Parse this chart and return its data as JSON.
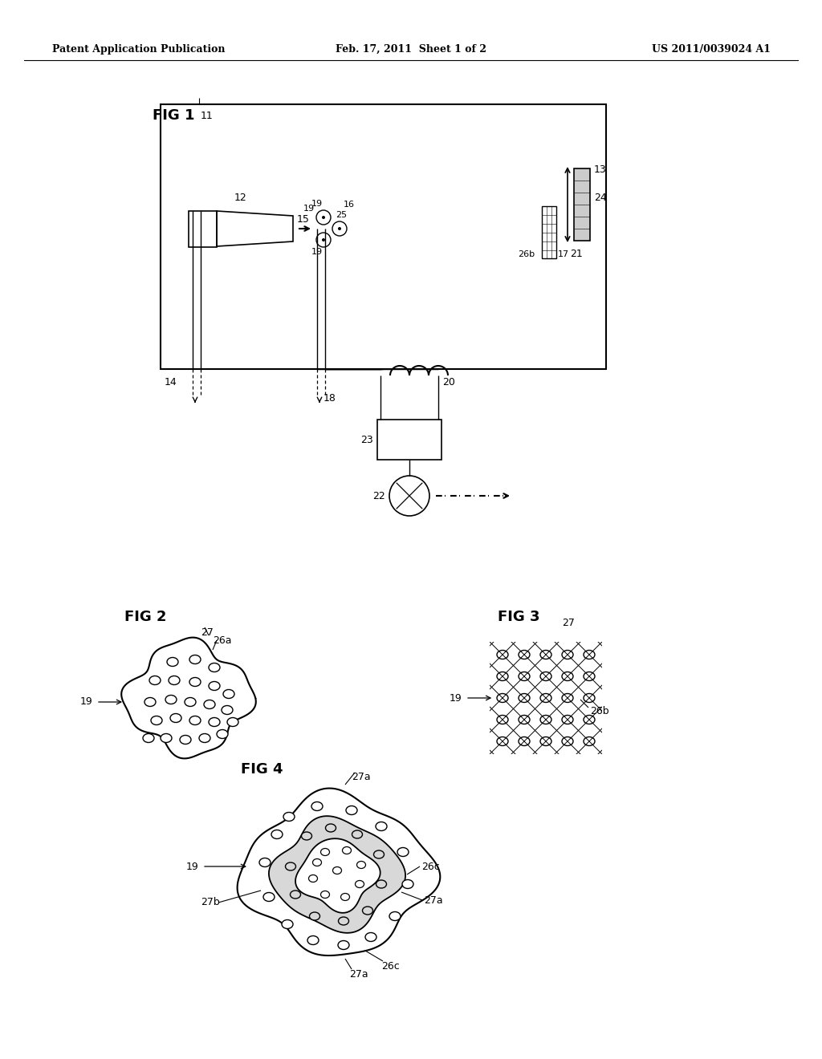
{
  "bg_color": "#ffffff",
  "header_left": "Patent Application Publication",
  "header_mid": "Feb. 17, 2011  Sheet 1 of 2",
  "header_right": "US 2011/0039024 A1",
  "fig1_label": "FIG 1",
  "fig2_label": "FIG 2",
  "fig3_label": "FIG 3",
  "fig4_label": "FIG 4"
}
